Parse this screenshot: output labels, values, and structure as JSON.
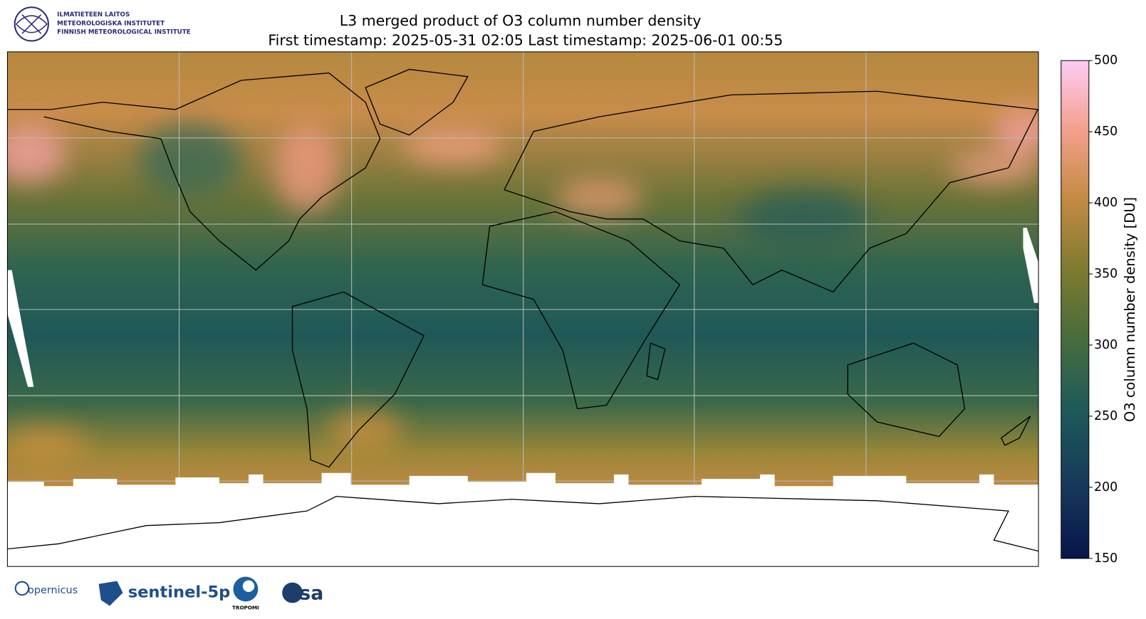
{
  "header": {
    "logo_lines": [
      "ILMATIETEEN LAITOS",
      "METEOROLOGISKA INSTITUTET",
      "FINNISH METEOROLOGICAL INSTITUTE"
    ]
  },
  "chart_data": {
    "type": "map",
    "title_lines": [
      "L3 merged product of O3 column number density",
      "First timestamp: 2025-05-31 02:05   Last timestamp: 2025-06-01 00:55"
    ],
    "colorbar": {
      "label": "O3 column number density [DU]",
      "lim": [
        150,
        500
      ],
      "ticks": [
        150,
        200,
        250,
        300,
        350,
        400,
        450,
        500
      ]
    }
  },
  "footer": {
    "logos": [
      "opernicus",
      "sentinel-5p",
      "TROPOMI",
      "esa"
    ]
  }
}
